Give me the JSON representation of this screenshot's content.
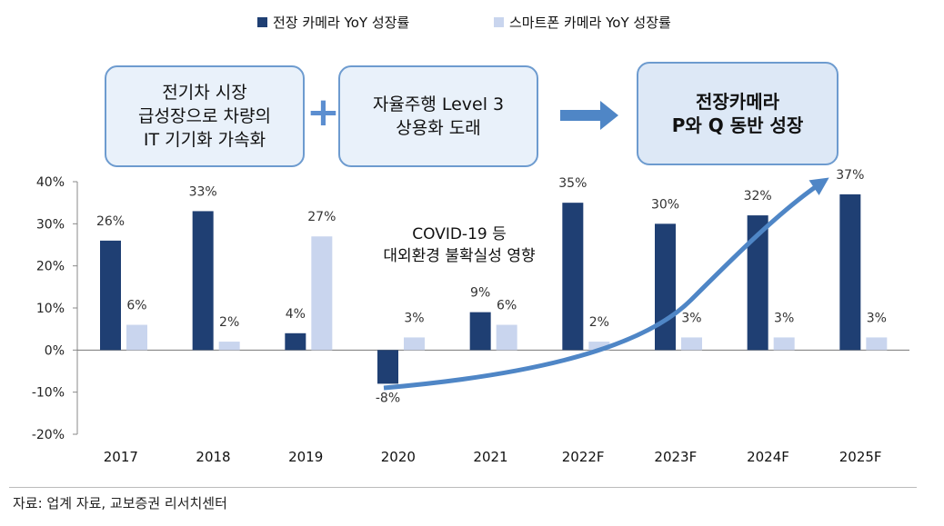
{
  "chart_data": {
    "type": "bar",
    "categories": [
      "2017",
      "2018",
      "2019",
      "2020",
      "2021",
      "2022F",
      "2023F",
      "2024F",
      "2025F"
    ],
    "series": [
      {
        "name": "전장 카메라 YoY 성장률",
        "values": [
          26,
          33,
          4,
          -8,
          9,
          35,
          30,
          32,
          37
        ],
        "color": "#1f3f73"
      },
      {
        "name": "스마트폰 카메라 YoY 성장률",
        "values": [
          6,
          2,
          27,
          3,
          6,
          2,
          3,
          3,
          3
        ],
        "color": "#c9d5ee"
      }
    ],
    "data_labels": [
      [
        "26%",
        "33%",
        "4%",
        "-8%",
        "9%",
        "35%",
        "30%",
        "32%",
        "37%"
      ],
      [
        "6%",
        "2%",
        "27%",
        "3%",
        "6%",
        "2%",
        "3%",
        "3%",
        "3%"
      ]
    ],
    "ylim": [
      -20,
      40
    ],
    "yticks": [
      -20,
      -10,
      0,
      10,
      20,
      30,
      40
    ],
    "ytick_labels": [
      "-20%",
      "-10%",
      "0%",
      "10%",
      "20%",
      "30%",
      "40%"
    ],
    "legend_position": "top",
    "grid": false
  },
  "boxes": {
    "box1": "전기차 시장\n급성장으로 차량의\nIT 기기화 가속화",
    "box2": "자율주행 Level 3\n상용화 도래",
    "box3": "전장카메라\nP와 Q 동반 성장",
    "plus": "+"
  },
  "annotation": "COVID-19 등\n대외환경 불확실성 영향",
  "source": "자료: 업계 자료, 교보증권 리서치센터",
  "colors": {
    "accent": "#5b8ed0",
    "arrow": "#4f86c6"
  }
}
